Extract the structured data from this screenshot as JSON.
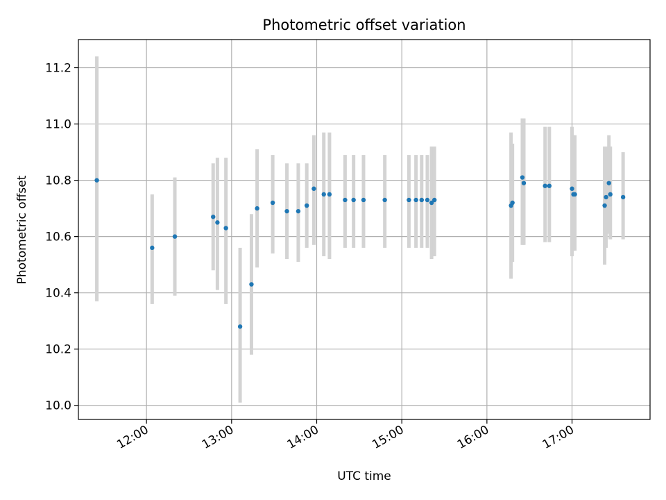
{
  "chart_data": {
    "type": "scatter",
    "title": "Photometric offset variation",
    "xlabel": "UTC time",
    "ylabel": "Photometric offset",
    "xlim": [
      "11:12",
      "17:55"
    ],
    "ylim": [
      9.95,
      11.3
    ],
    "x_ticks": [
      "12:00",
      "13:00",
      "14:00",
      "15:00",
      "16:00",
      "17:00"
    ],
    "y_ticks": [
      "10.0",
      "10.2",
      "10.4",
      "10.6",
      "10.8",
      "11.0",
      "11.2"
    ],
    "grid": true,
    "colors": {
      "marker": "#1f77b4",
      "errorbar": "#d3d3d3",
      "grid": "#b0b0b0"
    },
    "points": [
      {
        "x": "11:25",
        "y": 10.8,
        "lo": 10.37,
        "hi": 11.24
      },
      {
        "x": "12:04",
        "y": 10.56,
        "lo": 10.36,
        "hi": 10.75
      },
      {
        "x": "12:20",
        "y": 10.6,
        "lo": 10.39,
        "hi": 10.81
      },
      {
        "x": "12:47",
        "y": 10.67,
        "lo": 10.48,
        "hi": 10.86
      },
      {
        "x": "12:50",
        "y": 10.65,
        "lo": 10.41,
        "hi": 10.88
      },
      {
        "x": "12:56",
        "y": 10.63,
        "lo": 10.36,
        "hi": 10.88
      },
      {
        "x": "13:06",
        "y": 10.28,
        "lo": 10.01,
        "hi": 10.56
      },
      {
        "x": "13:14",
        "y": 10.43,
        "lo": 10.18,
        "hi": 10.68
      },
      {
        "x": "13:18",
        "y": 10.7,
        "lo": 10.49,
        "hi": 10.91
      },
      {
        "x": "13:29",
        "y": 10.72,
        "lo": 10.54,
        "hi": 10.89
      },
      {
        "x": "13:39",
        "y": 10.69,
        "lo": 10.52,
        "hi": 10.86
      },
      {
        "x": "13:47",
        "y": 10.69,
        "lo": 10.51,
        "hi": 10.86
      },
      {
        "x": "13:53",
        "y": 10.71,
        "lo": 10.56,
        "hi": 10.86
      },
      {
        "x": "13:58",
        "y": 10.77,
        "lo": 10.57,
        "hi": 10.96
      },
      {
        "x": "14:05",
        "y": 10.75,
        "lo": 10.53,
        "hi": 10.97
      },
      {
        "x": "14:09",
        "y": 10.75,
        "lo": 10.52,
        "hi": 10.97
      },
      {
        "x": "14:20",
        "y": 10.73,
        "lo": 10.56,
        "hi": 10.89
      },
      {
        "x": "14:26",
        "y": 10.73,
        "lo": 10.56,
        "hi": 10.89
      },
      {
        "x": "14:33",
        "y": 10.73,
        "lo": 10.56,
        "hi": 10.89
      },
      {
        "x": "14:48",
        "y": 10.73,
        "lo": 10.56,
        "hi": 10.89
      },
      {
        "x": "15:05",
        "y": 10.73,
        "lo": 10.56,
        "hi": 10.89
      },
      {
        "x": "15:10",
        "y": 10.73,
        "lo": 10.56,
        "hi": 10.89
      },
      {
        "x": "15:14",
        "y": 10.73,
        "lo": 10.56,
        "hi": 10.89
      },
      {
        "x": "15:18",
        "y": 10.73,
        "lo": 10.56,
        "hi": 10.89
      },
      {
        "x": "15:21",
        "y": 10.72,
        "lo": 10.52,
        "hi": 10.92
      },
      {
        "x": "15:23",
        "y": 10.73,
        "lo": 10.53,
        "hi": 10.92
      },
      {
        "x": "16:17",
        "y": 10.71,
        "lo": 10.45,
        "hi": 10.97
      },
      {
        "x": "16:18",
        "y": 10.72,
        "lo": 10.51,
        "hi": 10.93
      },
      {
        "x": "16:25",
        "y": 10.81,
        "lo": 10.57,
        "hi": 11.02
      },
      {
        "x": "16:26",
        "y": 10.79,
        "lo": 10.57,
        "hi": 11.02
      },
      {
        "x": "16:41",
        "y": 10.78,
        "lo": 10.58,
        "hi": 10.99
      },
      {
        "x": "16:44",
        "y": 10.78,
        "lo": 10.58,
        "hi": 10.99
      },
      {
        "x": "17:00",
        "y": 10.77,
        "lo": 10.53,
        "hi": 10.99
      },
      {
        "x": "17:01",
        "y": 10.75,
        "lo": 10.55,
        "hi": 10.96
      },
      {
        "x": "17:02",
        "y": 10.75,
        "lo": 10.55,
        "hi": 10.96
      },
      {
        "x": "17:23",
        "y": 10.71,
        "lo": 10.5,
        "hi": 10.92
      },
      {
        "x": "17:24",
        "y": 10.74,
        "lo": 10.56,
        "hi": 10.92
      },
      {
        "x": "17:26",
        "y": 10.79,
        "lo": 10.61,
        "hi": 10.96
      },
      {
        "x": "17:27",
        "y": 10.75,
        "lo": 10.59,
        "hi": 10.92
      },
      {
        "x": "17:36",
        "y": 10.74,
        "lo": 10.59,
        "hi": 10.9
      }
    ]
  }
}
